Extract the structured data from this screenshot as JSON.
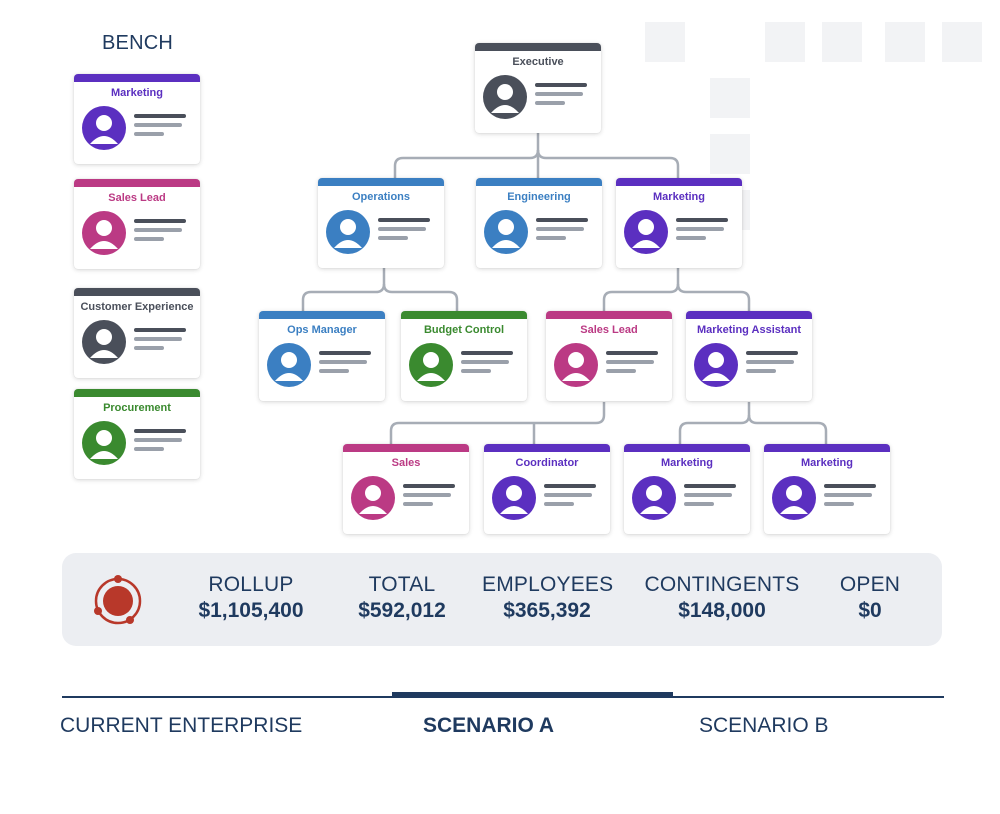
{
  "colors": {
    "purple": "#5b2fc0",
    "magenta": "#bb3a84",
    "blue": "#3b7fc2",
    "green": "#3a8a2f",
    "dark": "#4a4f5a",
    "navy": "#1f3a5f",
    "accent_red": "#b8382a"
  },
  "bench": {
    "title": "BENCH",
    "cards": [
      {
        "label": "Marketing",
        "color": "#5b2fc0"
      },
      {
        "label": "Sales Lead",
        "color": "#bb3a84"
      },
      {
        "label": "Customer Experience",
        "color": "#4a4f5a"
      },
      {
        "label": "Procurement",
        "color": "#3a8a2f"
      }
    ]
  },
  "org": {
    "executive": {
      "label": "Executive",
      "color": "#4a4f5a"
    },
    "level1": [
      {
        "label": "Operations",
        "color": "#3b7fc2"
      },
      {
        "label": "Engineering",
        "color": "#3b7fc2"
      },
      {
        "label": "Marketing",
        "color": "#5b2fc0"
      }
    ],
    "level2": [
      {
        "label": "Ops Manager",
        "color": "#3b7fc2"
      },
      {
        "label": "Budget Control",
        "color": "#3a8a2f"
      },
      {
        "label": "Sales Lead",
        "color": "#bb3a84"
      },
      {
        "label": "Marketing Assistant",
        "color": "#5b2fc0"
      }
    ],
    "level3": [
      {
        "label": "Sales",
        "color": "#bb3a84"
      },
      {
        "label": "Coordinator",
        "color": "#5b2fc0"
      },
      {
        "label": "Marketing",
        "color": "#5b2fc0"
      },
      {
        "label": "Marketing",
        "color": "#5b2fc0"
      }
    ]
  },
  "summary": {
    "icon": "budget-rollup-icon",
    "metrics": [
      {
        "label": "ROLLUP",
        "value": "$1,105,400"
      },
      {
        "label": "TOTAL",
        "value": "$592,012"
      },
      {
        "label": "EMPLOYEES",
        "value": "$365,392"
      },
      {
        "label": "CONTINGENTS",
        "value": "$148,000"
      },
      {
        "label": "OPEN",
        "value": "$0"
      }
    ]
  },
  "tabs": [
    {
      "label": "CURRENT ENTERPRISE",
      "active": false
    },
    {
      "label": "SCENARIO A",
      "active": true
    },
    {
      "label": "SCENARIO B",
      "active": false
    }
  ]
}
